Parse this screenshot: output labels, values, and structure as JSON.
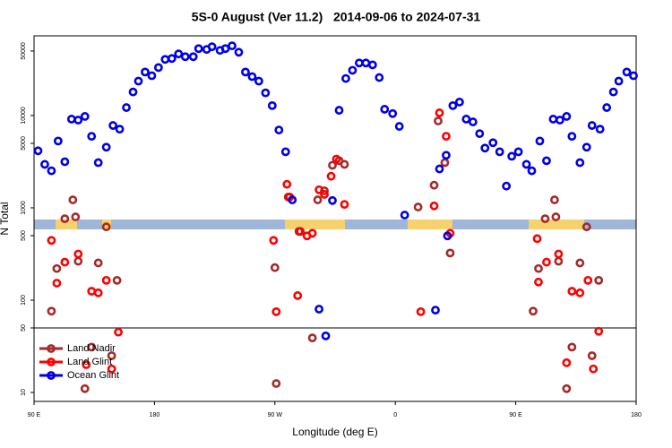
{
  "chart_data": {
    "type": "scatter",
    "title": "5S-0 August (Ver 11.2)   2014-09-06 to 2024-07-31",
    "xlabel": "Longitude (deg E)",
    "ylabel": "N Total",
    "log_y": true,
    "legend": "bottom-left",
    "hline": 50,
    "xlim": [
      90,
      540
    ],
    "xticks": [
      {
        "value": 90,
        "label": "90 E"
      },
      180,
      {
        "value": 270,
        "label": "90 W"
      },
      {
        "value": 360,
        "label": "0"
      },
      {
        "value": 450,
        "label": "90 E"
      },
      {
        "value": 540,
        "label": "180"
      }
    ],
    "ylim": [
      8,
      73000
    ],
    "yticks": [
      10,
      50,
      100,
      500,
      1000,
      5000,
      10000,
      50000
    ],
    "series": [
      {
        "name": "Land Nadir",
        "color": "#a52a2a",
        "x": [
          103,
          107,
          113,
          119,
          121,
          123,
          128,
          133,
          138,
          144,
          148,
          152,
          270,
          271,
          280,
          288,
          298,
          302,
          307,
          313,
          318,
          322,
          377,
          389,
          392,
          397,
          401,
          463,
          467,
          472,
          479,
          480,
          482,
          488,
          492,
          498,
          503,
          507,
          512
        ],
        "values": [
          76,
          220,
          762,
          1220,
          798,
          264,
          11,
          31,
          253,
          622,
          25,
          164,
          225,
          12.5,
          1310,
          556,
          39,
          1220,
          1530,
          2890,
          3240,
          2960,
          1020,
          1760,
          8730,
          3090,
          324,
          76,
          220,
          762,
          1220,
          798,
          264,
          11,
          31,
          253,
          622,
          25,
          164
        ]
      },
      {
        "name": "Land Glint",
        "color": "#ff0000",
        "x": [
          103,
          107,
          113,
          123,
          129,
          133,
          138,
          144,
          148,
          153,
          269,
          271,
          279,
          281,
          287,
          289,
          294,
          298,
          303,
          307,
          312,
          316,
          322,
          379,
          389,
          393,
          398,
          401,
          466,
          467,
          473,
          482,
          488,
          492,
          498,
          504,
          508,
          512
        ],
        "values": [
          444,
          153,
          258,
          316,
          20,
          125,
          120,
          164,
          18,
          45,
          444,
          75,
          1800,
          1310,
          112,
          556,
          497,
          531,
          1570,
          1400,
          2200,
          3380,
          1090,
          75,
          1050,
          10700,
          5960,
          531,
          464,
          157,
          258,
          316,
          21,
          125,
          120,
          164,
          18,
          46
        ]
      },
      {
        "name": "Ocean Glint",
        "color": "#0000e6",
        "x": [
          93,
          98,
          103,
          108,
          113,
          118,
          123,
          128,
          133,
          138,
          144,
          149,
          154,
          159,
          164,
          168,
          173,
          178,
          183,
          188,
          193,
          198,
          203,
          209,
          213,
          219,
          223,
          229,
          233,
          238,
          243,
          248,
          253,
          258,
          263,
          268,
          273,
          278,
          283,
          303,
          308,
          313,
          318,
          323,
          328,
          333,
          338,
          343,
          348,
          352,
          358,
          363,
          367,
          390,
          393,
          398,
          399,
          403,
          408,
          413,
          418,
          423,
          427,
          433,
          438,
          443,
          447,
          452,
          458,
          462,
          468,
          473,
          478,
          483,
          488,
          492,
          498,
          503,
          507,
          513,
          518,
          523,
          527,
          533,
          538
        ],
        "values": [
          4150,
          2960,
          2520,
          5300,
          3160,
          9150,
          8930,
          9780,
          5960,
          3090,
          4540,
          7800,
          7120,
          12200,
          18000,
          23600,
          29600,
          27000,
          33100,
          40600,
          41500,
          46500,
          43400,
          43400,
          53100,
          52000,
          55600,
          50800,
          53100,
          56900,
          48500,
          29600,
          26400,
          23600,
          17600,
          12800,
          6970,
          4050,
          1220,
          80,
          41,
          1200,
          11400,
          25200,
          30900,
          37100,
          37100,
          35400,
          25800,
          11700,
          10500,
          7630,
          835,
          78,
          2640,
          3710,
          497,
          12800,
          14000,
          9150,
          8530,
          6370,
          4440,
          5080,
          4050,
          1720,
          3620,
          4050,
          2960,
          2520,
          5300,
          3240,
          9150,
          8930,
          9780,
          5960,
          3090,
          4540,
          7800,
          7120,
          12200,
          18000,
          23600,
          29600,
          27000
        ]
      }
    ]
  }
}
